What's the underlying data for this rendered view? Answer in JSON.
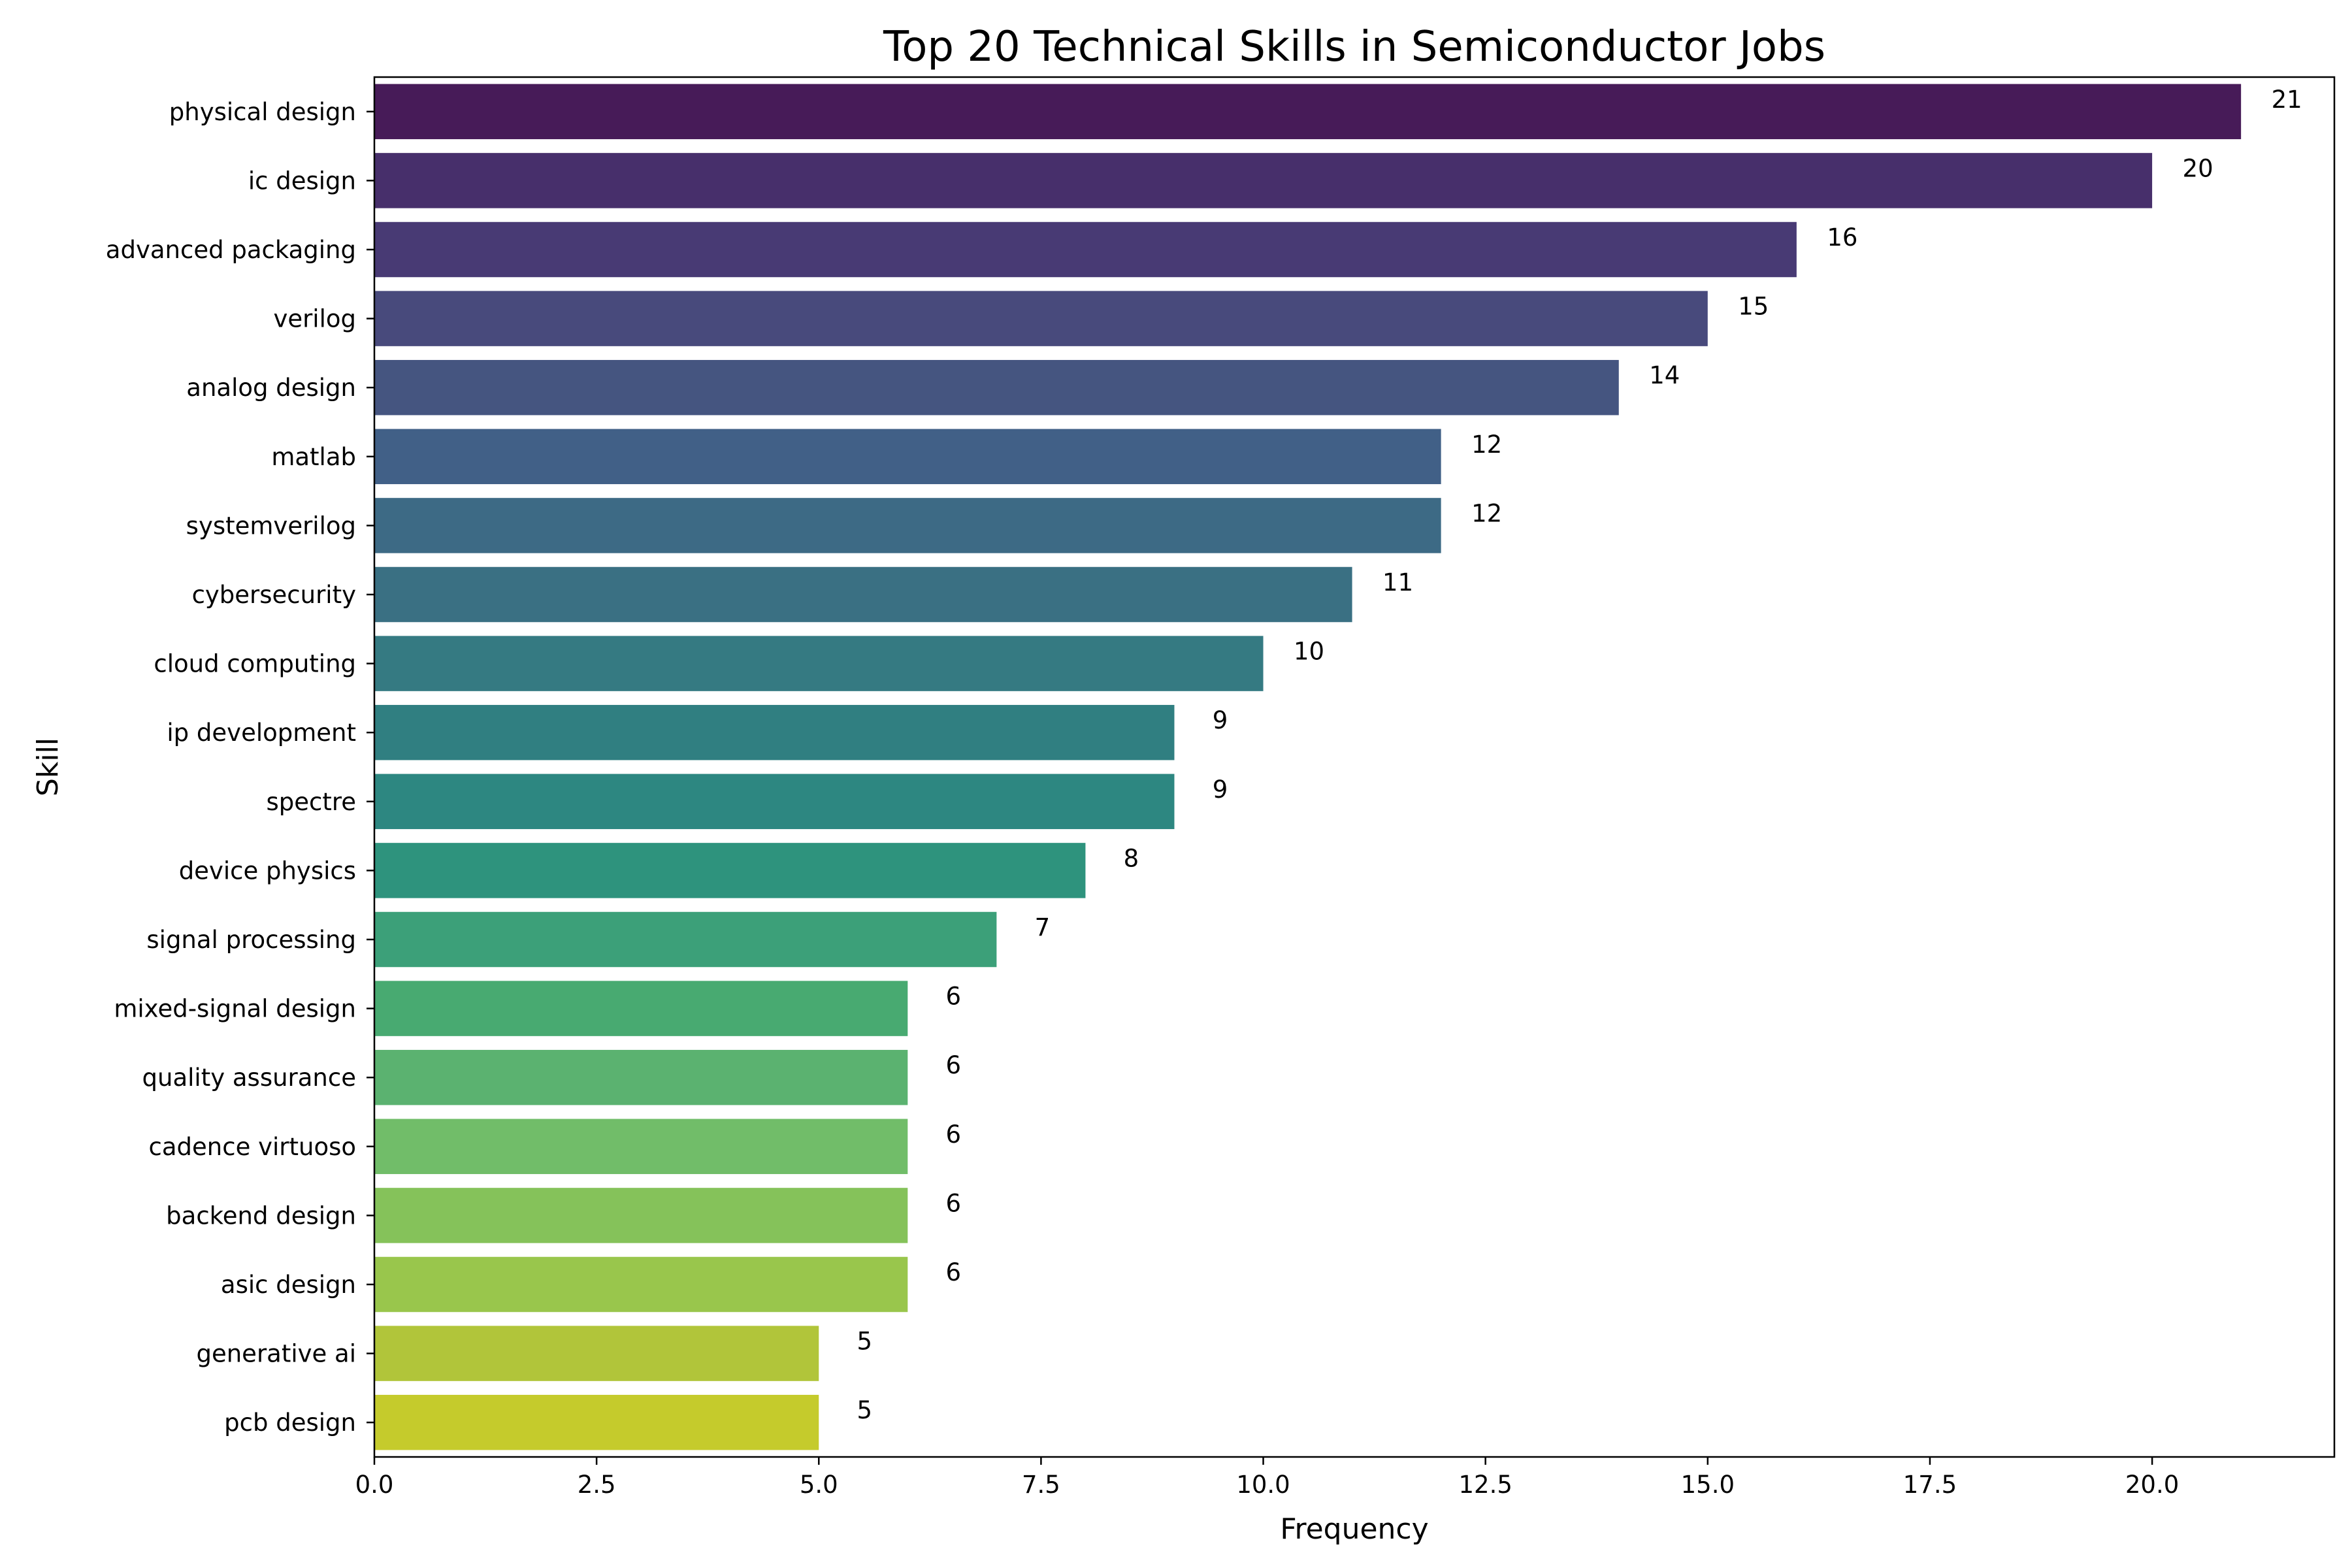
{
  "chart_data": {
    "type": "bar",
    "orientation": "horizontal",
    "title": "Top 20 Technical Skills in Semiconductor Jobs",
    "xlabel": "Frequency",
    "ylabel": "Skill",
    "xlim": [
      0,
      22.05
    ],
    "xticks": [
      "0.0",
      "2.5",
      "5.0",
      "7.5",
      "10.0",
      "12.5",
      "15.0",
      "17.5",
      "20.0"
    ],
    "grid": false,
    "colormap": "viridis",
    "categories": [
      "physical design",
      "ic design",
      "advanced packaging",
      "verilog",
      "analog design",
      "matlab",
      "systemverilog",
      "cybersecurity",
      "cloud computing",
      "ip development",
      "spectre",
      "device physics",
      "signal processing",
      "mixed-signal design",
      "quality assurance",
      "cadence virtuoso",
      "backend design",
      "asic design",
      "generative ai",
      "pcb design"
    ],
    "values": [
      21,
      20,
      16,
      15,
      14,
      12,
      12,
      11,
      10,
      9,
      9,
      8,
      7,
      6,
      6,
      6,
      6,
      6,
      5,
      5
    ],
    "colors": [
      "#471b58",
      "#472f6b",
      "#483a74",
      "#484a7c",
      "#455580",
      "#416087",
      "#3d6a85",
      "#3a7083",
      "#357a82",
      "#307f81",
      "#2d8781",
      "#2e937d",
      "#3ca079",
      "#48aa71",
      "#5bb270",
      "#71bd69",
      "#85c25a",
      "#99c64c",
      "#b1c53a",
      "#c5cb2c"
    ]
  }
}
